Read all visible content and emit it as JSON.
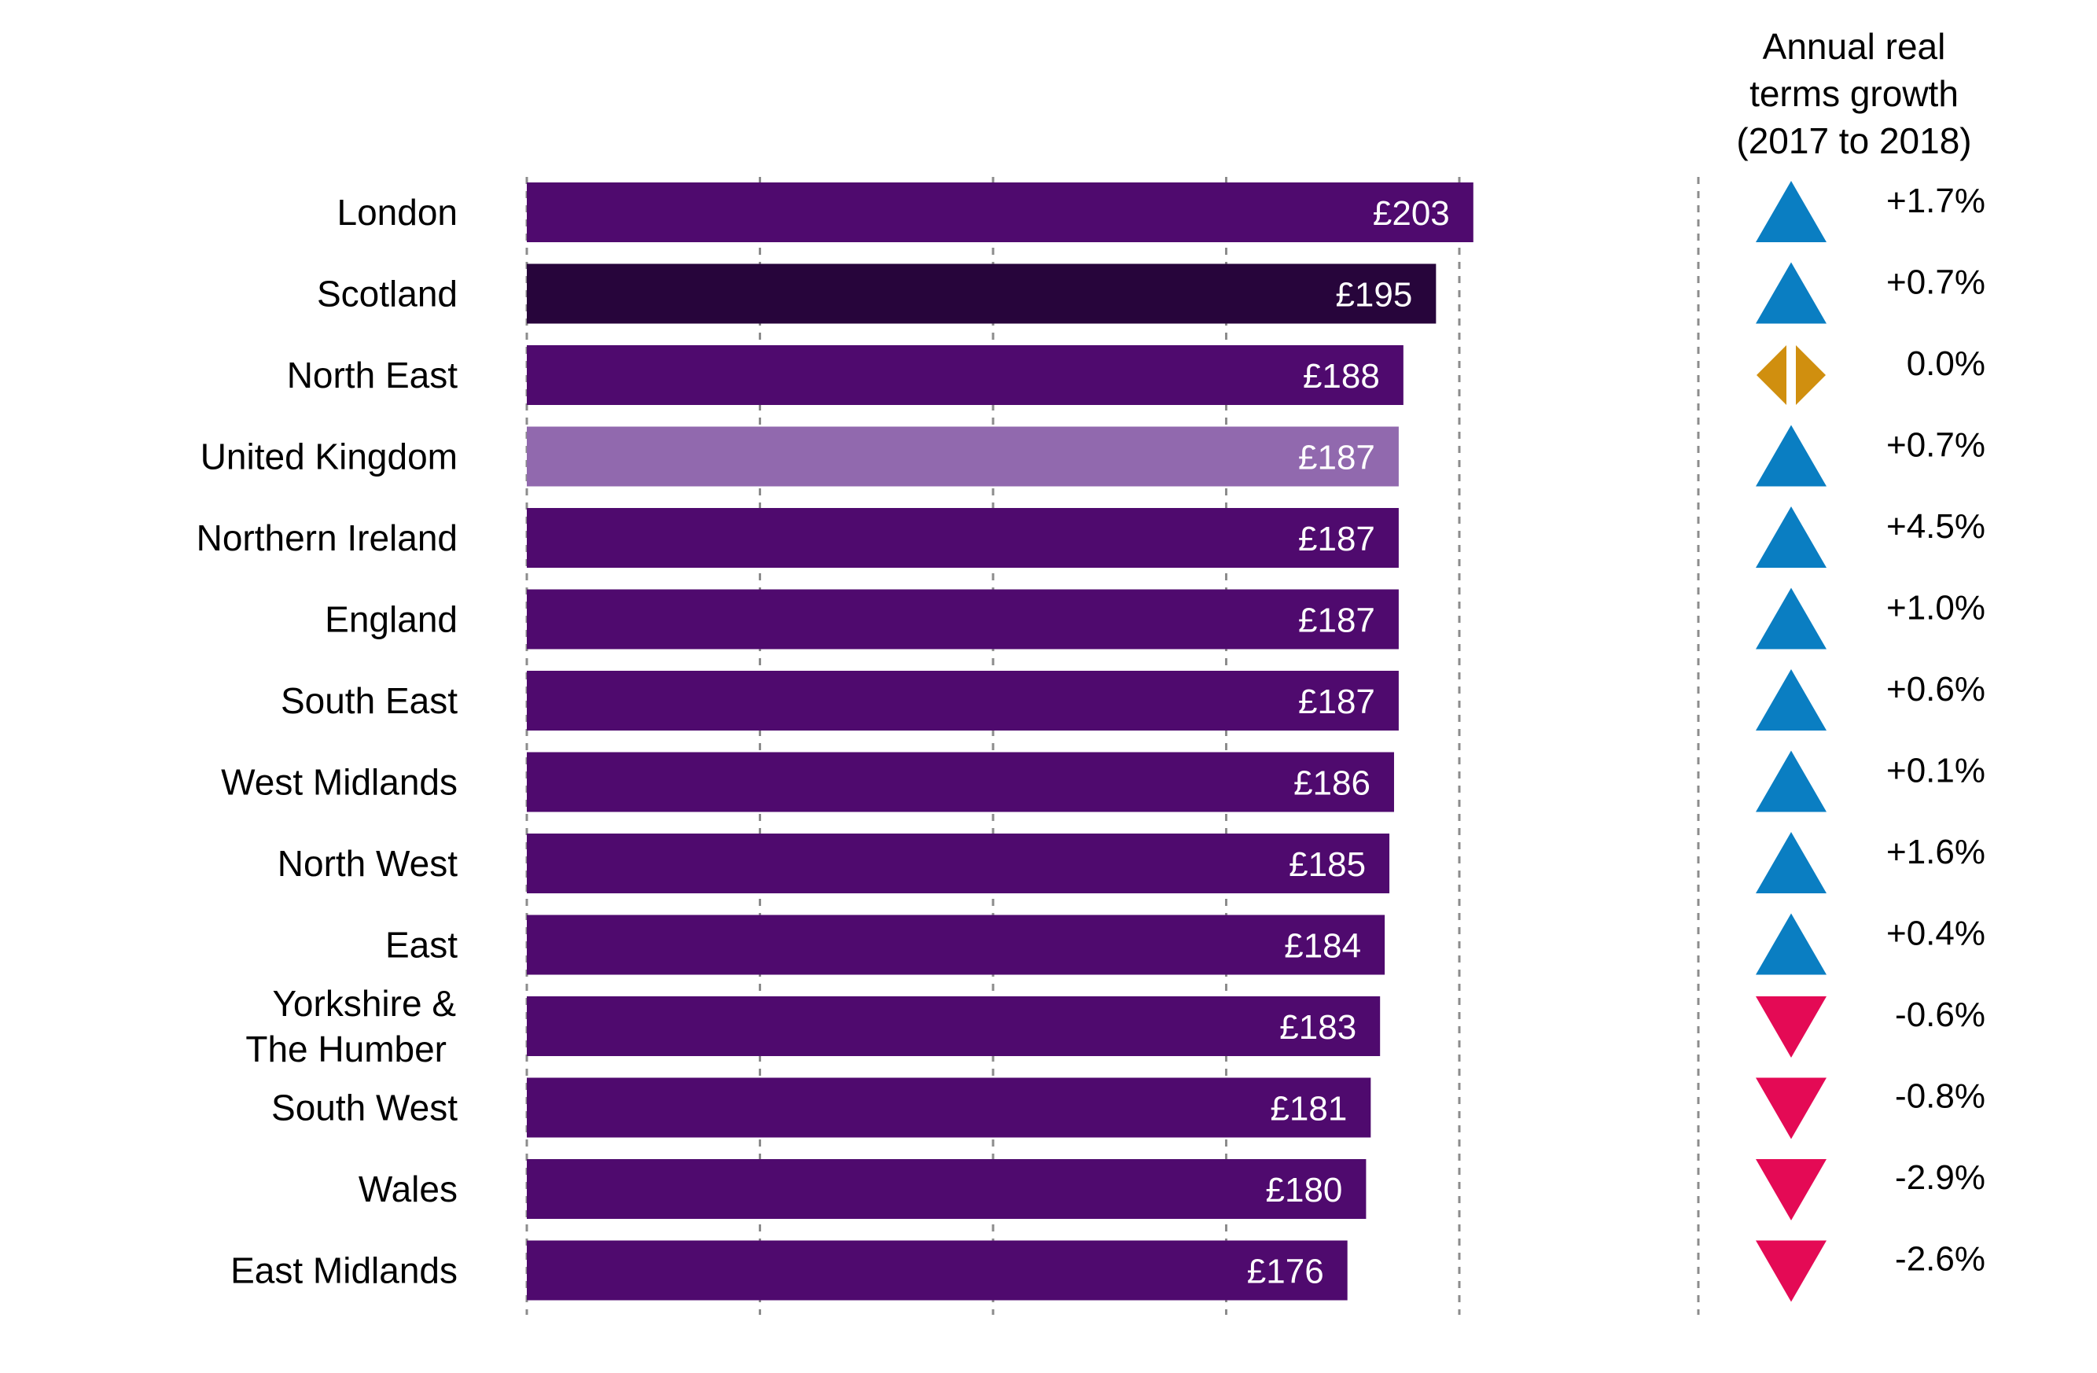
{
  "chart_data": {
    "type": "bar",
    "orientation": "horizontal",
    "categories": [
      "London",
      "Scotland",
      "North East",
      "United Kingdom",
      "Northern Ireland",
      "England",
      "South East",
      "West Midlands",
      "North West",
      "East",
      "Yorkshire & The Humber",
      "South West",
      "Wales",
      "East Midlands"
    ],
    "category_lines": [
      [
        "London"
      ],
      [
        "Scotland"
      ],
      [
        "North East"
      ],
      [
        "United Kingdom"
      ],
      [
        "Northern Ireland"
      ],
      [
        "England"
      ],
      [
        "South East"
      ],
      [
        "West Midlands"
      ],
      [
        "North West"
      ],
      [
        "East"
      ],
      [
        "Yorkshire &",
        "The Humber"
      ],
      [
        "South West"
      ],
      [
        "Wales"
      ],
      [
        "East Midlands"
      ]
    ],
    "values": [
      203,
      195,
      188,
      187,
      187,
      187,
      187,
      186,
      185,
      184,
      183,
      181,
      180,
      176
    ],
    "value_labels": [
      "£203",
      "£195",
      "£188",
      "£187",
      "£187",
      "£187",
      "£187",
      "£186",
      "£185",
      "£184",
      "£183",
      "£181",
      "£180",
      "£176"
    ],
    "bar_colors": [
      "#4f0a6e",
      "#27053b",
      "#4f0a6e",
      "#9169ae",
      "#4f0a6e",
      "#4f0a6e",
      "#4f0a6e",
      "#4f0a6e",
      "#4f0a6e",
      "#4f0a6e",
      "#4f0a6e",
      "#4f0a6e",
      "#4f0a6e",
      "#4f0a6e"
    ],
    "xlim": [
      0,
      225
    ],
    "gridlines": [
      0,
      50,
      100,
      150,
      200
    ],
    "grid": true,
    "growth": {
      "header_lines": [
        "Annual real",
        "terms growth",
        "(2017 to 2018)"
      ],
      "labels": [
        "+1.7%",
        "+0.7%",
        "0.0%",
        "+0.7%",
        "+4.5%",
        "+1.0%",
        "+0.6%",
        "+0.1%",
        "+1.6%",
        "+0.4%",
        "-0.6%",
        "-0.8%",
        "-2.9%",
        "-2.6%"
      ],
      "values": [
        1.7,
        0.7,
        0.0,
        0.7,
        4.5,
        1.0,
        0.6,
        0.1,
        1.6,
        0.4,
        -0.6,
        -0.8,
        -2.9,
        -2.6
      ],
      "indicator_icons": [
        "up-triangle",
        "up-triangle",
        "no-change",
        "up-triangle",
        "up-triangle",
        "up-triangle",
        "up-triangle",
        "up-triangle",
        "up-triangle",
        "up-triangle",
        "down-triangle",
        "down-triangle",
        "down-triangle",
        "down-triangle"
      ]
    },
    "colors": {
      "bar": "#4f0a6e",
      "highlight_scotland": "#27053b",
      "highlight_uk": "#9169ae",
      "up": "#0a7ec2",
      "down": "#e40a55",
      "no_change": "#d08f0f"
    }
  }
}
